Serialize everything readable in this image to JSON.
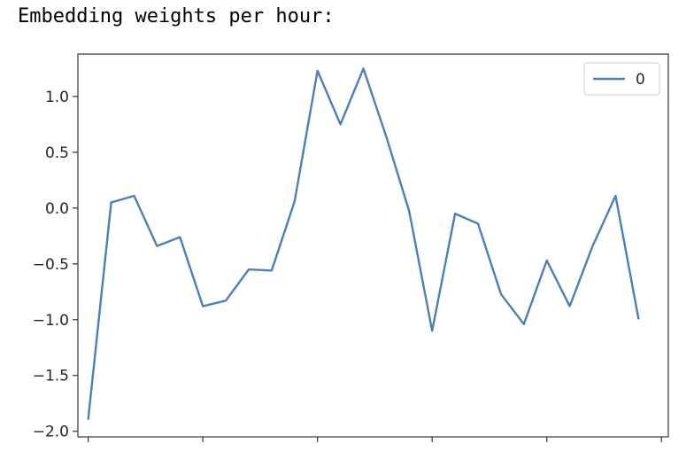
{
  "output": {
    "text": "Embedding weights per hour:"
  },
  "chart_data": {
    "type": "line",
    "title": "",
    "xlabel": "",
    "ylabel": "",
    "x": [
      0,
      1,
      2,
      3,
      4,
      5,
      6,
      7,
      8,
      9,
      10,
      11,
      12,
      13,
      14,
      15,
      16,
      17,
      18,
      19,
      20,
      21,
      22,
      23,
      24
    ],
    "x_ticks": [
      0,
      5,
      10,
      15,
      20,
      25
    ],
    "x_tick_labels_visible": false,
    "ylim": [
      -2.05,
      1.38
    ],
    "y_ticks": [
      1.0,
      0.5,
      0.0,
      -0.5,
      -1.0,
      -1.5,
      -2.0
    ],
    "y_tick_labels": [
      "1.0",
      "0.5",
      "0.0",
      "−0.5",
      "−1.0",
      "−1.5",
      "−2.0"
    ],
    "grid": false,
    "legend": "top-right",
    "series": [
      {
        "name": "0",
        "color": "#4c7fb8",
        "values": [
          -1.89,
          0.05,
          0.11,
          -0.34,
          -0.26,
          -0.88,
          -0.83,
          -0.55,
          -0.56,
          0.06,
          1.23,
          0.75,
          1.25,
          0.64,
          -0.03,
          -1.1,
          -0.05,
          -0.14,
          -0.77,
          -1.04,
          -0.47,
          -0.88,
          -0.34,
          0.11,
          -0.99
        ]
      }
    ]
  }
}
